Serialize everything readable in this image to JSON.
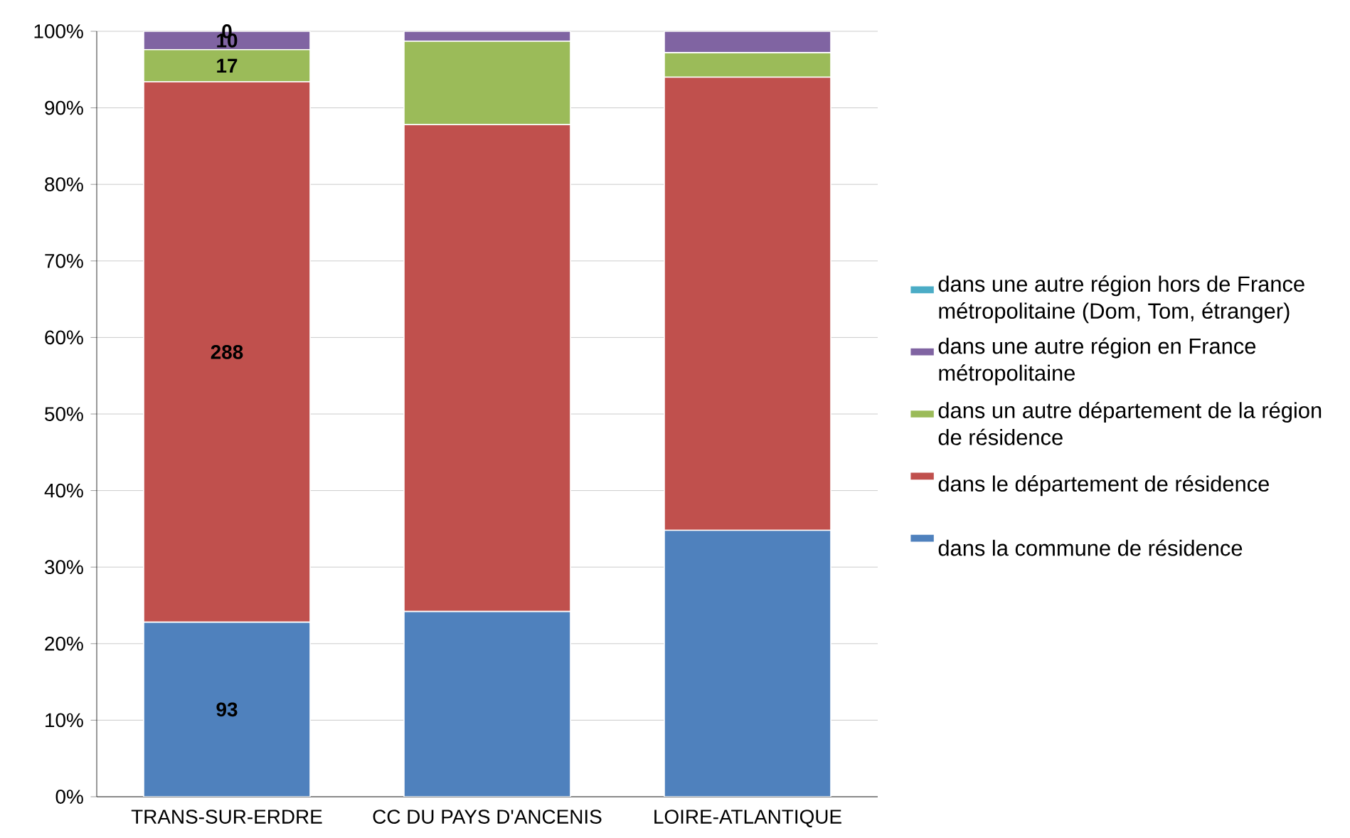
{
  "chart_data": {
    "type": "bar",
    "stacked": true,
    "categories": [
      "TRANS-SUR-ERDRE",
      "CC DU PAYS D'ANCENIS",
      "LOIRE-ATLANTIQUE"
    ],
    "series": [
      {
        "name": "dans la commune de résidence",
        "color": "#4f81bd",
        "values": [
          22.8,
          24.2,
          34.8
        ]
      },
      {
        "name": "dans le département de résidence",
        "color": "#c0504d",
        "values": [
          70.6,
          63.6,
          59.2
        ]
      },
      {
        "name": "dans un autre département de la région de résidence",
        "color": "#9bbb59",
        "values": [
          4.2,
          10.9,
          3.2
        ]
      },
      {
        "name": "dans une autre région en France métropolitaine",
        "color": "#8064a2",
        "values": [
          2.4,
          1.3,
          2.8
        ]
      },
      {
        "name": "dans une autre région hors de France métropolitaine (Dom, Tom, étranger)",
        "color": "#4bacc6",
        "values": [
          0,
          0,
          0
        ]
      }
    ],
    "annotations": [
      "93",
      "288",
      "17",
      "10",
      "0"
    ],
    "ylim": [
      0,
      100
    ],
    "yticks": [
      {
        "value": 0,
        "label": "0%"
      },
      {
        "value": 10,
        "label": "10%"
      },
      {
        "value": 20,
        "label": "20%"
      },
      {
        "value": 30,
        "label": "30%"
      },
      {
        "value": 40,
        "label": "40%"
      },
      {
        "value": 50,
        "label": "50%"
      },
      {
        "value": 60,
        "label": "60%"
      },
      {
        "value": 70,
        "label": "70%"
      },
      {
        "value": 80,
        "label": "80%"
      },
      {
        "value": 90,
        "label": "90%"
      },
      {
        "value": 100,
        "label": "100%"
      }
    ],
    "grid": "y",
    "legend": "right"
  }
}
